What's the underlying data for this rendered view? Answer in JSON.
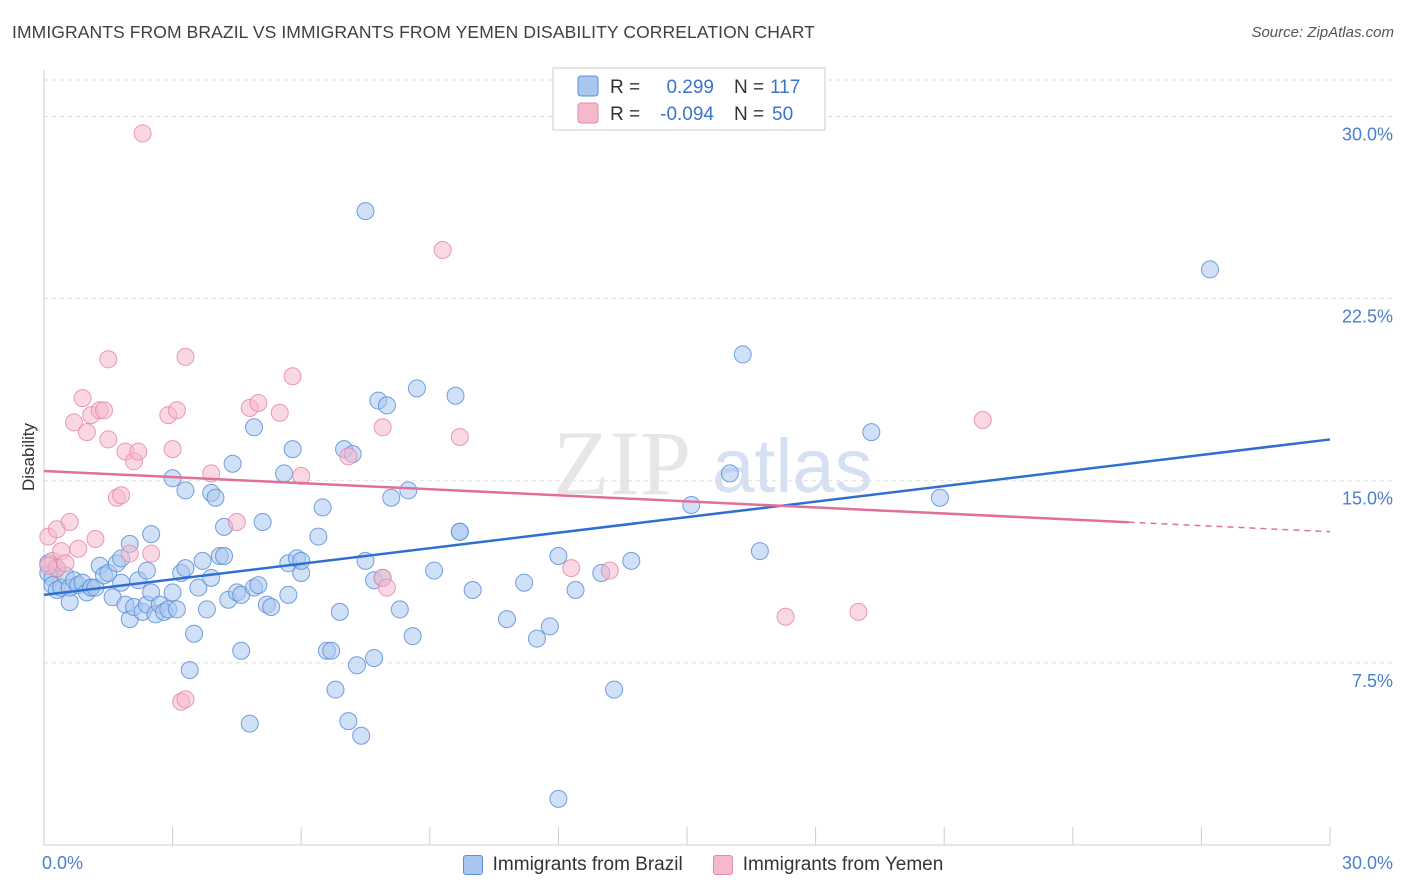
{
  "title": "IMMIGRANTS FROM BRAZIL VS IMMIGRANTS FROM YEMEN DISABILITY CORRELATION CHART",
  "source": "Source: ZipAtlas.com",
  "watermark": {
    "zip": "ZIP",
    "atlas": "atlas"
  },
  "colors": {
    "brazil_fill": "#a9c6ef",
    "brazil_stroke": "#5b8fd9",
    "brazil_line": "#2f6fd1",
    "yemen_fill": "#f5b8cc",
    "yemen_stroke": "#e589a8",
    "yemen_line": "#e07098",
    "tick_text": "#4a7fd0",
    "grid": "#dddddd"
  },
  "legend_box": {
    "rows": [
      {
        "r_label": "R =",
        "r_value": "0.299",
        "n_label": "N =",
        "n_value": "117"
      },
      {
        "r_label": "R =",
        "r_value": "-0.094",
        "n_label": "N =",
        "n_value": "50"
      }
    ]
  },
  "bottom_legend": {
    "brazil": "Immigrants from Brazil",
    "yemen": "Immigrants from Yemen"
  },
  "chart_data": {
    "type": "scatter",
    "xlabel": "",
    "ylabel": "Disability",
    "xlim": [
      0,
      30
    ],
    "ylim": [
      0,
      31.5
    ],
    "x_tick_labels": [
      "0.0%",
      "30.0%"
    ],
    "y_ticks": [
      7.5,
      15.0,
      22.5,
      30.0
    ],
    "y_tick_labels": [
      "7.5%",
      "15.0%",
      "22.5%",
      "30.0%"
    ],
    "legend_position": "top-center",
    "grid": true,
    "series": [
      {
        "name": "Immigrants from Brazil",
        "points": [
          [
            0.1,
            11.2
          ],
          [
            0.1,
            11.6
          ],
          [
            0.2,
            11.0
          ],
          [
            0.2,
            10.7
          ],
          [
            0.3,
            11.4
          ],
          [
            0.3,
            10.5
          ],
          [
            0.4,
            10.6
          ],
          [
            0.5,
            11.1
          ],
          [
            0.6,
            10.0
          ],
          [
            0.6,
            10.6
          ],
          [
            0.7,
            10.9
          ],
          [
            0.8,
            10.7
          ],
          [
            0.9,
            10.8
          ],
          [
            1.0,
            10.4
          ],
          [
            1.1,
            10.6
          ],
          [
            1.1,
            10.6
          ],
          [
            1.2,
            10.6
          ],
          [
            1.3,
            11.5
          ],
          [
            1.4,
            11.1
          ],
          [
            1.5,
            11.2
          ],
          [
            1.6,
            10.2
          ],
          [
            1.7,
            11.6
          ],
          [
            1.8,
            10.8
          ],
          [
            1.8,
            11.8
          ],
          [
            1.9,
            9.9
          ],
          [
            2.0,
            12.4
          ],
          [
            2.0,
            9.3
          ],
          [
            2.1,
            9.8
          ],
          [
            2.2,
            10.9
          ],
          [
            2.3,
            9.6
          ],
          [
            2.4,
            9.9
          ],
          [
            2.4,
            11.3
          ],
          [
            2.5,
            10.4
          ],
          [
            2.5,
            12.8
          ],
          [
            2.6,
            9.5
          ],
          [
            2.7,
            9.9
          ],
          [
            2.8,
            9.6
          ],
          [
            2.9,
            9.7
          ],
          [
            3.0,
            15.1
          ],
          [
            3.0,
            10.4
          ],
          [
            3.1,
            9.7
          ],
          [
            3.2,
            11.2
          ],
          [
            3.3,
            14.6
          ],
          [
            3.3,
            11.4
          ],
          [
            3.4,
            7.2
          ],
          [
            3.5,
            8.7
          ],
          [
            3.6,
            10.6
          ],
          [
            3.7,
            11.7
          ],
          [
            3.8,
            9.7
          ],
          [
            3.9,
            14.5
          ],
          [
            3.9,
            11.0
          ],
          [
            4.0,
            14.3
          ],
          [
            4.1,
            11.9
          ],
          [
            4.2,
            11.9
          ],
          [
            4.2,
            13.1
          ],
          [
            4.3,
            10.1
          ],
          [
            4.4,
            15.7
          ],
          [
            4.5,
            10.4
          ],
          [
            4.6,
            8.0
          ],
          [
            4.6,
            10.3
          ],
          [
            4.8,
            5.0
          ],
          [
            4.9,
            17.2
          ],
          [
            4.9,
            10.6
          ],
          [
            5.0,
            10.7
          ],
          [
            5.1,
            13.3
          ],
          [
            5.2,
            9.9
          ],
          [
            5.3,
            9.8
          ],
          [
            5.6,
            15.3
          ],
          [
            5.7,
            11.6
          ],
          [
            5.7,
            10.3
          ],
          [
            5.8,
            16.3
          ],
          [
            5.9,
            11.8
          ],
          [
            6.0,
            11.2
          ],
          [
            6.0,
            11.7
          ],
          [
            6.4,
            12.7
          ],
          [
            6.5,
            13.9
          ],
          [
            6.6,
            8.0
          ],
          [
            6.7,
            8.0
          ],
          [
            6.8,
            6.4
          ],
          [
            6.9,
            9.6
          ],
          [
            7.0,
            16.3
          ],
          [
            7.1,
            5.1
          ],
          [
            7.2,
            16.1
          ],
          [
            7.3,
            7.4
          ],
          [
            7.4,
            4.5
          ],
          [
            7.5,
            11.7
          ],
          [
            7.7,
            7.7
          ],
          [
            7.5,
            26.1
          ],
          [
            7.7,
            10.9
          ],
          [
            7.8,
            18.3
          ],
          [
            7.9,
            11.0
          ],
          [
            8.0,
            18.1
          ],
          [
            8.1,
            14.3
          ],
          [
            8.3,
            9.7
          ],
          [
            8.5,
            14.6
          ],
          [
            8.6,
            8.6
          ],
          [
            8.7,
            18.8
          ],
          [
            9.1,
            11.3
          ],
          [
            9.6,
            18.5
          ],
          [
            9.7,
            12.9
          ],
          [
            9.7,
            12.9
          ],
          [
            10.0,
            10.5
          ],
          [
            10.8,
            9.3
          ],
          [
            11.2,
            10.8
          ],
          [
            11.5,
            8.5
          ],
          [
            11.8,
            9.0
          ],
          [
            12.0,
            11.9
          ],
          [
            12.0,
            1.9
          ],
          [
            12.4,
            10.5
          ],
          [
            13.0,
            11.2
          ],
          [
            13.3,
            6.4
          ],
          [
            13.7,
            11.7
          ],
          [
            15.1,
            14.0
          ],
          [
            16.0,
            15.3
          ],
          [
            16.3,
            20.2
          ],
          [
            16.7,
            12.1
          ],
          [
            19.3,
            17.0
          ],
          [
            20.9,
            14.3
          ],
          [
            27.2,
            23.7
          ]
        ],
        "trend": {
          "x": [
            0,
            30
          ],
          "y": [
            10.3,
            16.7
          ]
        }
      },
      {
        "name": "Immigrants from Yemen",
        "points": [
          [
            0.1,
            12.7
          ],
          [
            0.2,
            11.7
          ],
          [
            0.3,
            13.0
          ],
          [
            0.3,
            11.4
          ],
          [
            0.4,
            12.1
          ],
          [
            0.5,
            11.6
          ],
          [
            0.6,
            13.3
          ],
          [
            0.7,
            17.4
          ],
          [
            0.8,
            12.2
          ],
          [
            0.9,
            18.4
          ],
          [
            1.0,
            17.0
          ],
          [
            1.1,
            17.7
          ],
          [
            1.2,
            12.6
          ],
          [
            1.3,
            17.9
          ],
          [
            1.4,
            17.9
          ],
          [
            1.5,
            16.7
          ],
          [
            1.5,
            20.0
          ],
          [
            1.7,
            14.3
          ],
          [
            1.8,
            14.4
          ],
          [
            1.9,
            16.2
          ],
          [
            2.0,
            12.0
          ],
          [
            2.1,
            15.8
          ],
          [
            2.2,
            16.2
          ],
          [
            2.3,
            29.3
          ],
          [
            2.5,
            12.0
          ],
          [
            2.9,
            17.7
          ],
          [
            3.0,
            16.3
          ],
          [
            3.1,
            17.9
          ],
          [
            3.2,
            5.9
          ],
          [
            3.3,
            6.0
          ],
          [
            3.3,
            20.1
          ],
          [
            3.9,
            15.3
          ],
          [
            4.5,
            13.3
          ],
          [
            4.8,
            18.0
          ],
          [
            5.0,
            18.2
          ],
          [
            5.5,
            17.8
          ],
          [
            5.8,
            19.3
          ],
          [
            6.0,
            15.2
          ],
          [
            7.1,
            16.0
          ],
          [
            7.9,
            17.2
          ],
          [
            7.9,
            11.0
          ],
          [
            8.0,
            10.6
          ],
          [
            9.3,
            24.5
          ],
          [
            9.7,
            16.8
          ],
          [
            12.3,
            11.4
          ],
          [
            13.2,
            11.3
          ],
          [
            17.3,
            9.4
          ],
          [
            19.0,
            9.6
          ],
          [
            21.9,
            17.5
          ],
          [
            0.1,
            11.5
          ]
        ],
        "trend": {
          "x": [
            0,
            30
          ],
          "y": [
            15.4,
            12.9
          ]
        },
        "trend_solid_until_x": 25.3
      }
    ]
  }
}
